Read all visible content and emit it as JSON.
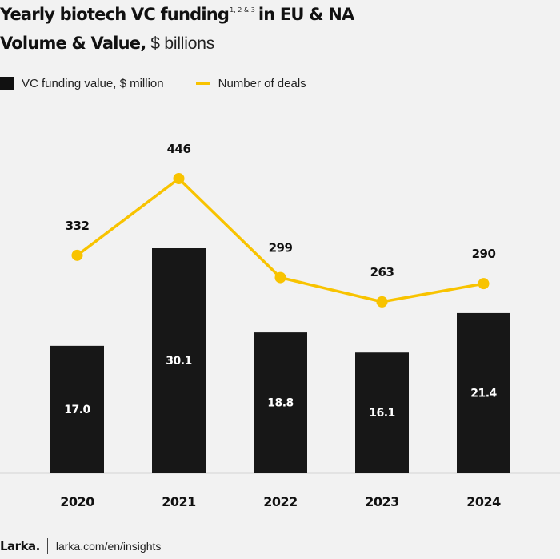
{
  "header": {
    "title": "Yearly biotech VC funding",
    "title_footnote": "1, 2 & 3",
    "title_suffix": "in EU & NA",
    "subtitle_bold": "Volume & Value,",
    "subtitle_light": "$ billions"
  },
  "legend": {
    "bar_label": "VC funding value, $ million",
    "line_label": "Number of deals"
  },
  "footer": {
    "logo": "Larka.",
    "url": "larka.com/en/insights"
  },
  "colors": {
    "bar": "#171717",
    "line": "#f8c300",
    "axis": "#b5b5b5",
    "background": "#f2f2f2"
  },
  "chart_data": {
    "type": "bar+line",
    "title": "Yearly biotech VC funding in EU & NA — Volume & Value, $ billions",
    "categories": [
      "2020",
      "2021",
      "2022",
      "2023",
      "2024"
    ],
    "series": [
      {
        "name": "VC funding value, $ million",
        "type": "bar",
        "values": [
          17.0,
          30.1,
          18.8,
          16.1,
          21.4
        ],
        "labels": [
          "17.0",
          "30.1",
          "18.8",
          "16.1",
          "21.4"
        ]
      },
      {
        "name": "Number of deals",
        "type": "line",
        "values": [
          332,
          446,
          299,
          263,
          290
        ],
        "labels": [
          "332",
          "446",
          "299",
          "263",
          "290"
        ]
      }
    ],
    "xlabel": "",
    "ylabel": "",
    "bar_ylim": [
      0,
      30.1
    ],
    "line_ylim": [
      0,
      446
    ],
    "grid": false,
    "legend_position": "top-left"
  }
}
